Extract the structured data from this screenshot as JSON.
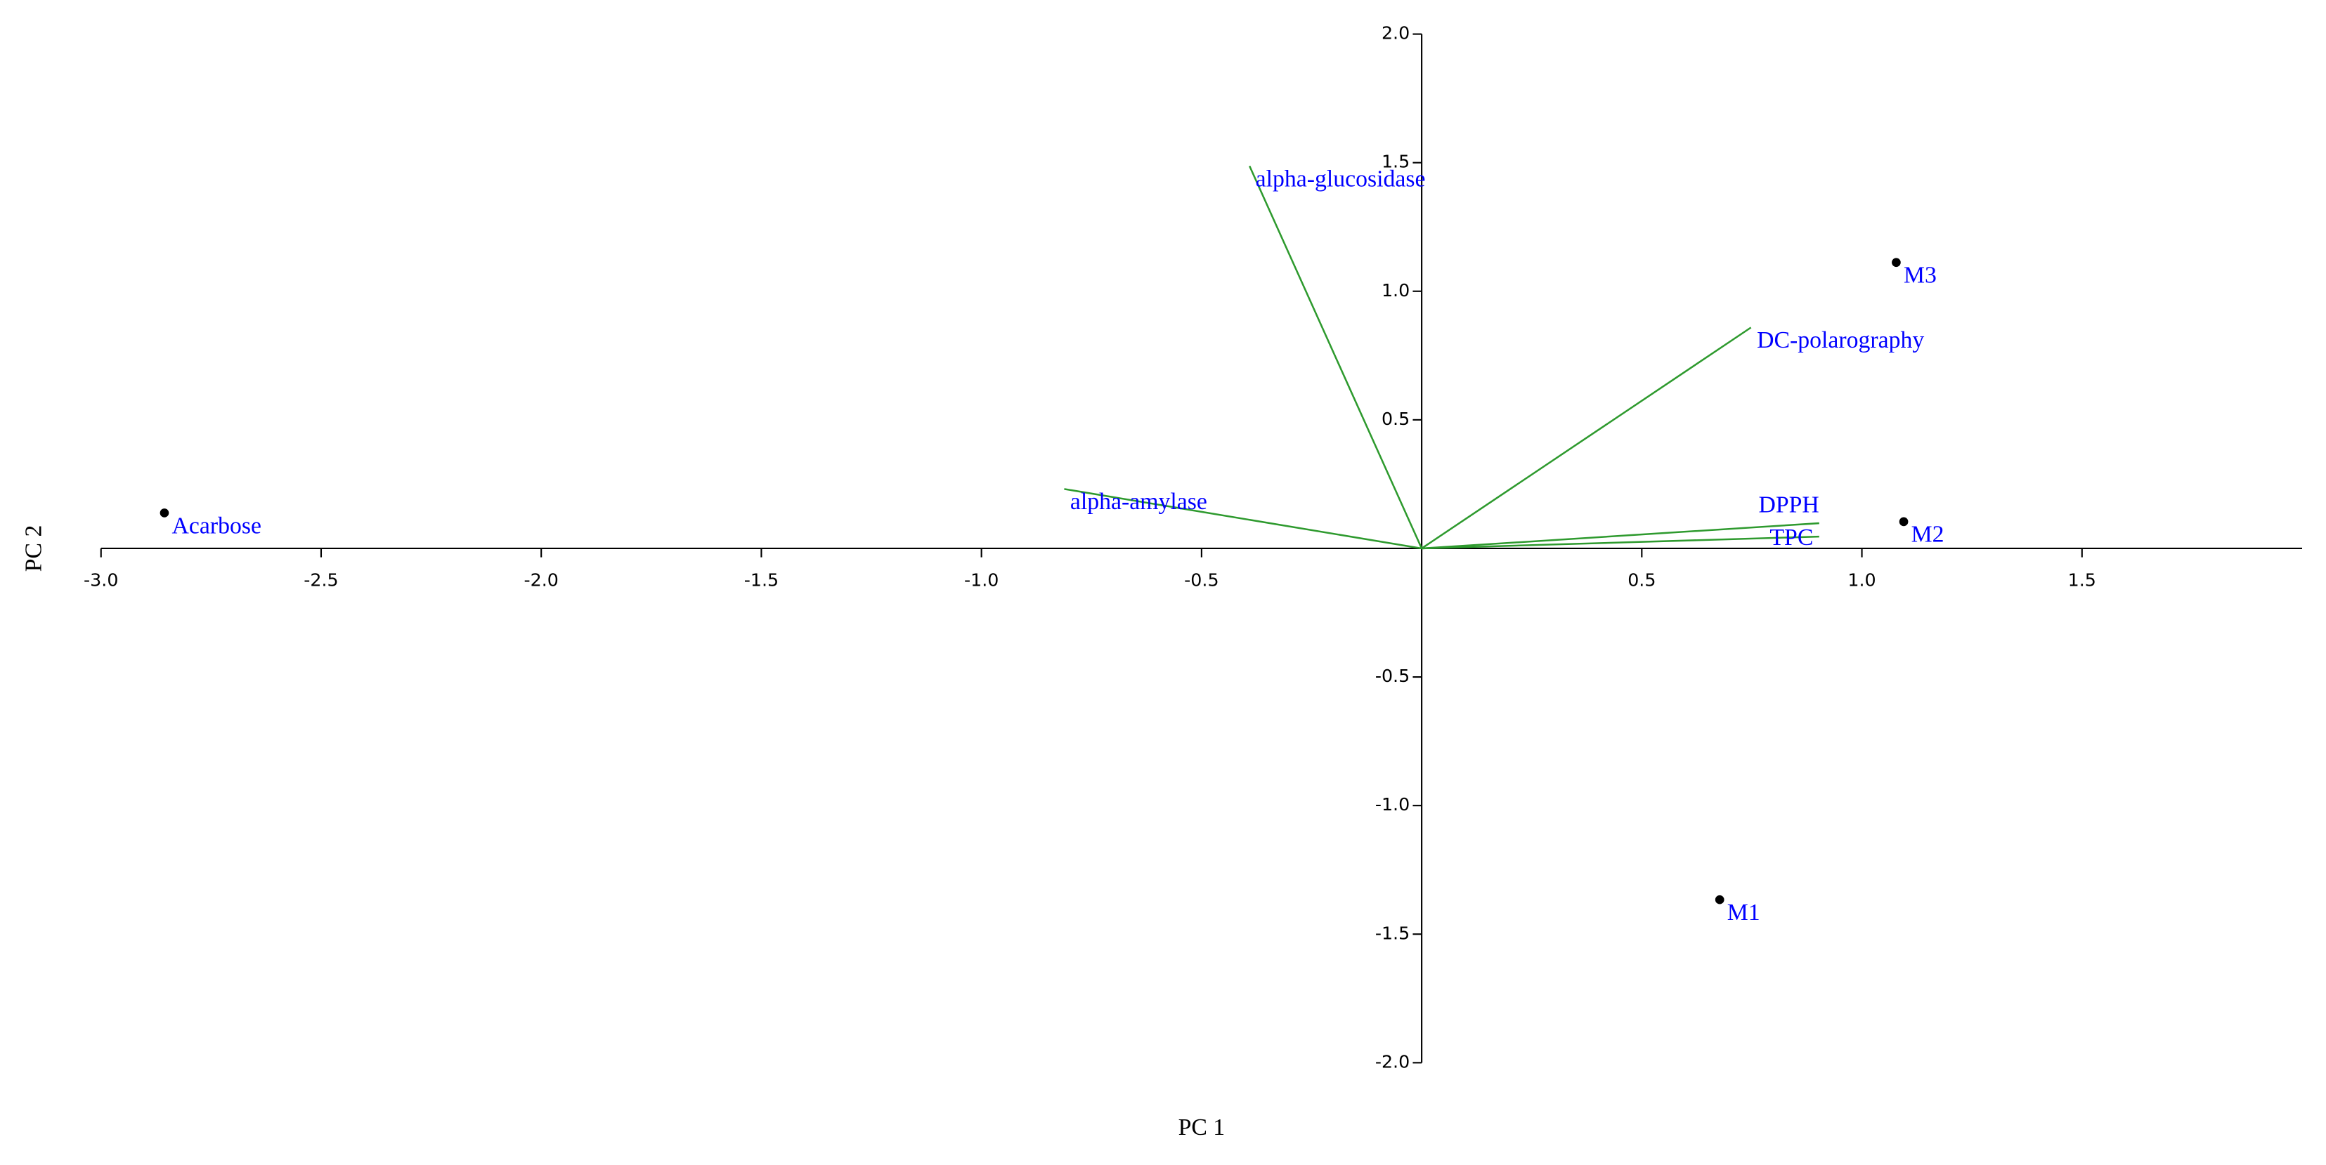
{
  "chart_data": {
    "type": "biplot",
    "x_label": "PC 1",
    "y_label": "PC 2",
    "xlim": [
      -3,
      2
    ],
    "ylim": [
      -2,
      2
    ],
    "xticks": [
      {
        "value": -3,
        "label": "-3.0"
      },
      -2.5,
      {
        "value": -2,
        "label": "-2.0"
      },
      -1.5,
      {
        "value": -1,
        "label": "-1.0"
      },
      -0.5,
      0.5,
      {
        "value": 1,
        "label": "1.0"
      },
      1.5
    ],
    "yticks": [
      {
        "value": 2,
        "label": "2.0"
      },
      1.5,
      {
        "value": 1,
        "label": "1.0"
      },
      0.5,
      -0.5,
      {
        "value": -1,
        "label": "-1.0"
      },
      -1.5,
      {
        "value": -2,
        "label": "-2.0"
      }
    ],
    "label_color": "#0000ff",
    "scores": {
      "labels": [
        "Acarbose",
        "M3",
        "M2",
        "M1"
      ],
      "x": [
        -2.856,
        1.078,
        1.095,
        0.677
      ],
      "y": [
        0.138,
        1.112,
        0.104,
        -1.366
      ],
      "color": "#000000"
    },
    "loadings": {
      "labels": [
        "alpha-glucosidase",
        "DC-polarography",
        "alpha-amylase",
        "DPPH",
        "TPC"
      ],
      "x": [
        -0.391,
        0.748,
        -0.812,
        0.903,
        0.903
      ],
      "y": [
        1.487,
        0.859,
        0.231,
        0.098,
        0.046
      ],
      "color": "#2e9a2e"
    }
  }
}
